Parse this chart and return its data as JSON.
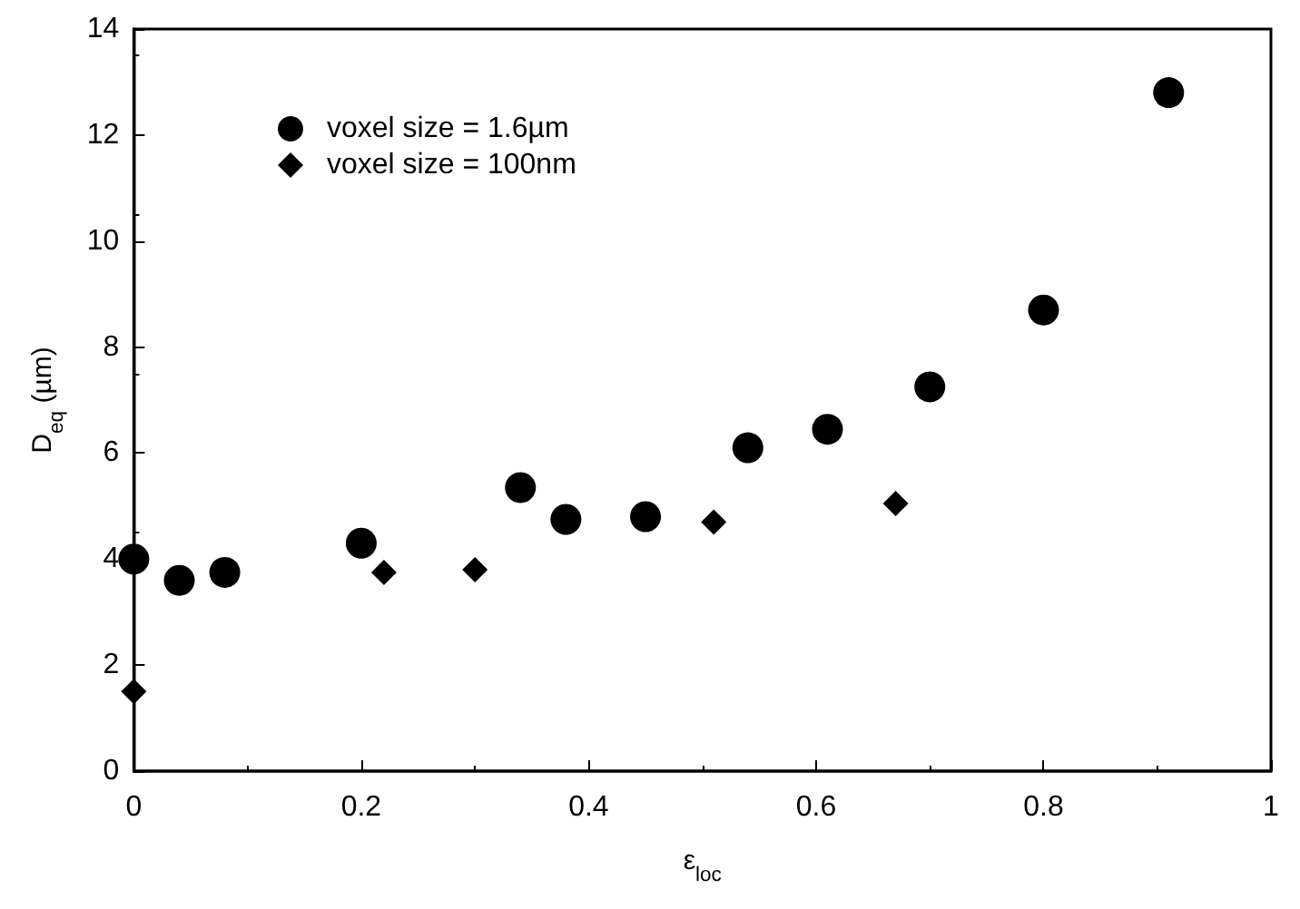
{
  "chart_data": {
    "type": "scatter",
    "xlabel": "ε$_{loc}$",
    "ylabel": "D$_{eq}$ (µm)",
    "xlim": [
      0,
      1
    ],
    "xticks": [
      0,
      0.2,
      0.4,
      0.6,
      0.8,
      1
    ],
    "ylim": [
      0,
      14
    ],
    "yticks": [
      0,
      2,
      4,
      6,
      8,
      10,
      12,
      14
    ],
    "grid": false,
    "legend": "top left",
    "series": [
      {
        "name": "voxel size = 1.6µm",
        "color": "#000000",
        "marker": "circle",
        "x": [
          0,
          0.04,
          0.08,
          0.2,
          0.34,
          0.38,
          0.45,
          0.54,
          0.61,
          0.7,
          0.8,
          0.91
        ],
        "values": [
          4.0,
          3.6,
          3.75,
          4.3,
          5.35,
          4.75,
          4.8,
          6.1,
          6.45,
          7.25,
          8.7,
          12.8
        ]
      },
      {
        "name": "voxel size = 100nm",
        "color": "#000000",
        "marker": "diamond",
        "x": [
          0,
          0.22,
          0.3,
          0.51,
          0.67
        ],
        "values": [
          1.5,
          3.75,
          3.8,
          4.7,
          5.05
        ]
      }
    ]
  }
}
